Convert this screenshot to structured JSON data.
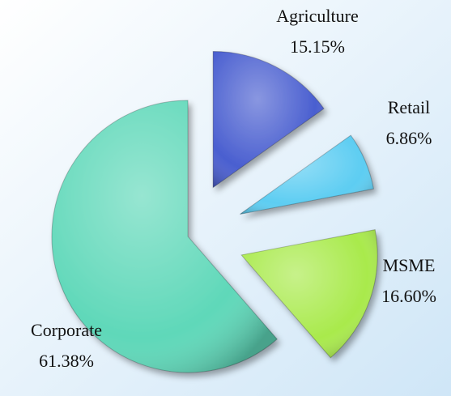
{
  "chart_data": {
    "type": "pie",
    "categories": [
      "Agriculture",
      "Retail",
      "MSME",
      "Corporate"
    ],
    "values": [
      15.15,
      6.86,
      16.6,
      61.38
    ],
    "value_labels": [
      "15.15%",
      "6.86%",
      "16.60%",
      "61.38%"
    ],
    "colors": [
      "#4a5fd0",
      "#5dcdf2",
      "#a9ea4c",
      "#5fd8b9"
    ]
  }
}
